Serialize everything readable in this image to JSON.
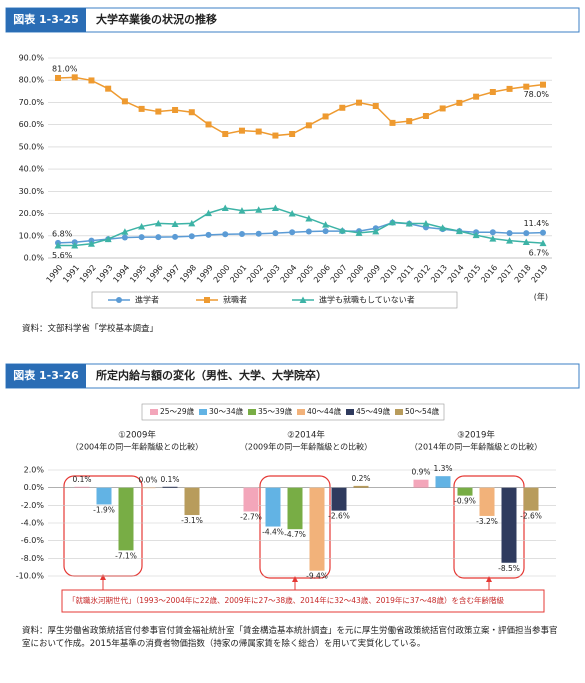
{
  "chart_data": [
    {
      "type": "line",
      "figure_number": "図表 1-3-25",
      "title": "大学卒業後の状況の推移",
      "categories": [
        "1990",
        "1991",
        "1992",
        "1993",
        "1994",
        "1995",
        "1996",
        "1997",
        "1998",
        "1999",
        "2000",
        "2001",
        "2002",
        "2003",
        "2004",
        "2005",
        "2006",
        "2007",
        "2008",
        "2009",
        "2010",
        "2011",
        "2012",
        "2013",
        "2014",
        "2015",
        "2016",
        "2017",
        "2018",
        "2019"
      ],
      "x_unit": "(年)",
      "ylim": [
        0,
        90
      ],
      "yticks": [
        {
          "value": 0,
          "label": "0.0%"
        },
        {
          "value": 10,
          "label": "10.0%"
        },
        {
          "value": 20,
          "label": "20.0%"
        },
        {
          "value": 30,
          "label": "30.0%"
        },
        {
          "value": 40,
          "label": "40.0%"
        },
        {
          "value": 50,
          "label": "50.0%"
        },
        {
          "value": 60,
          "label": "60.0%"
        },
        {
          "value": 70,
          "label": "70.0%"
        },
        {
          "value": 80,
          "label": "80.0%"
        },
        {
          "value": 90,
          "label": "90.0%"
        }
      ],
      "grid": true,
      "series": [
        {
          "name": "進学者",
          "color": "#5b9bd5",
          "marker": "circle",
          "values": [
            6.8,
            7.1,
            7.8,
            8.5,
            9.2,
            9.4,
            9.4,
            9.5,
            9.8,
            10.4,
            10.7,
            10.8,
            10.9,
            11.2,
            11.6,
            11.9,
            12.1,
            12.1,
            12.1,
            13.4,
            15.9,
            15.4,
            13.8,
            13.0,
            12.1,
            11.6,
            11.6,
            11.2,
            11.2,
            11.4
          ],
          "value_labels": [
            "6.8%",
            null,
            null,
            null,
            null,
            null,
            null,
            null,
            null,
            null,
            null,
            null,
            null,
            null,
            null,
            null,
            null,
            null,
            null,
            null,
            null,
            null,
            null,
            null,
            null,
            null,
            null,
            null,
            null,
            "11.4%"
          ]
        },
        {
          "name": "就職者",
          "color": "#ee9a30",
          "marker": "square",
          "values": [
            81.0,
            81.3,
            79.9,
            76.2,
            70.5,
            67.1,
            65.9,
            66.6,
            65.6,
            60.1,
            55.8,
            57.3,
            56.9,
            55.1,
            55.8,
            59.7,
            63.7,
            67.6,
            69.9,
            68.4,
            60.8,
            61.6,
            63.9,
            67.3,
            69.8,
            72.6,
            74.7,
            76.1,
            77.1,
            78.0
          ],
          "value_labels": [
            "81.0%",
            null,
            null,
            null,
            null,
            null,
            null,
            null,
            null,
            null,
            null,
            null,
            null,
            null,
            null,
            null,
            null,
            null,
            null,
            null,
            null,
            null,
            null,
            null,
            null,
            null,
            null,
            null,
            null,
            "78.0%"
          ]
        },
        {
          "name": "進学も就職もしていない者",
          "color": "#3db3a6",
          "marker": "triangle",
          "values": [
            5.6,
            5.6,
            6.4,
            8.5,
            11.8,
            14.2,
            15.6,
            15.3,
            15.6,
            20.2,
            22.5,
            21.3,
            21.7,
            22.5,
            20.0,
            17.8,
            15.0,
            12.4,
            11.3,
            12.0,
            16.1,
            15.5,
            15.5,
            13.6,
            12.1,
            10.3,
            8.7,
            7.8,
            7.2,
            6.7
          ],
          "value_labels": [
            "5.6%",
            null,
            null,
            null,
            null,
            null,
            null,
            null,
            null,
            null,
            null,
            null,
            null,
            null,
            null,
            null,
            null,
            null,
            null,
            null,
            null,
            null,
            null,
            null,
            null,
            null,
            null,
            null,
            null,
            "6.7%"
          ]
        }
      ],
      "source": "資料：文部科学省「学校基本調査」"
    },
    {
      "type": "bar",
      "figure_number": "図表 1-3-26",
      "title": "所定内給与額の変化（男性、大学、大学院卒）",
      "categories": [
        "①2009年",
        "②2014年",
        "③2019年"
      ],
      "category_notes": [
        "（2004年の同一年齢階級との比較）",
        "（2009年の同一年齢階級との比較）",
        "（2014年の同一年齢階級との比較）"
      ],
      "ylim": [
        -10,
        2
      ],
      "yticks": [
        {
          "value": 2,
          "label": "2.0%"
        },
        {
          "value": 0,
          "label": "0.0%"
        },
        {
          "value": -2,
          "label": "-2.0%"
        },
        {
          "value": -4,
          "label": "-4.0%"
        },
        {
          "value": -6,
          "label": "-6.0%"
        },
        {
          "value": -8,
          "label": "-8.0%"
        },
        {
          "value": -10,
          "label": "-10.0%"
        }
      ],
      "grid": true,
      "series": [
        {
          "name": "25～29歳",
          "color": "#f3a6ba",
          "values": [
            0.1,
            -2.7,
            0.9
          ],
          "value_labels": [
            "0.1%",
            "-2.7%",
            "0.9%"
          ]
        },
        {
          "name": "30～34歳",
          "color": "#62b3e4",
          "values": [
            -1.9,
            -4.4,
            1.3
          ],
          "value_labels": [
            "-1.9%",
            "-4.4%",
            "1.3%"
          ]
        },
        {
          "name": "35～39歳",
          "color": "#78ad45",
          "values": [
            -7.1,
            -4.7,
            -0.9
          ],
          "value_labels": [
            "-7.1%",
            "-4.7%",
            "-0.9%"
          ]
        },
        {
          "name": "40～44歳",
          "color": "#f2b27a",
          "values": [
            0.0,
            -9.4,
            -3.2
          ],
          "value_labels": [
            "0.0%",
            "-9.4%",
            "-3.2%"
          ]
        },
        {
          "name": "45～49歳",
          "color": "#2f3b5e",
          "values": [
            0.1,
            -2.6,
            -8.5
          ],
          "value_labels": [
            "0.1%",
            "-2.6%",
            "-8.5%"
          ]
        },
        {
          "name": "50～54歳",
          "color": "#b89c5c",
          "values": [
            -3.1,
            0.2,
            -2.6
          ],
          "value_labels": [
            "-3.1%",
            "0.2%",
            "-2.6%"
          ]
        }
      ],
      "annotation": "「就職氷河期世代」（1993～2004年に22歳、2009年に27～38歳、2014年に32～43歳、2019年に37～48歳）を含む年齢階級",
      "source": "資料：厚生労働省政策統括官付参事官付賃金福祉統計室「賃金構造基本統計調査」を元に厚生労働省政策統括官付政策立案・評価担当参事官室において作成。2015年基準の消費者物価指数（持家の帰属家賃を除く総合）を用いて実質化している。"
    }
  ]
}
